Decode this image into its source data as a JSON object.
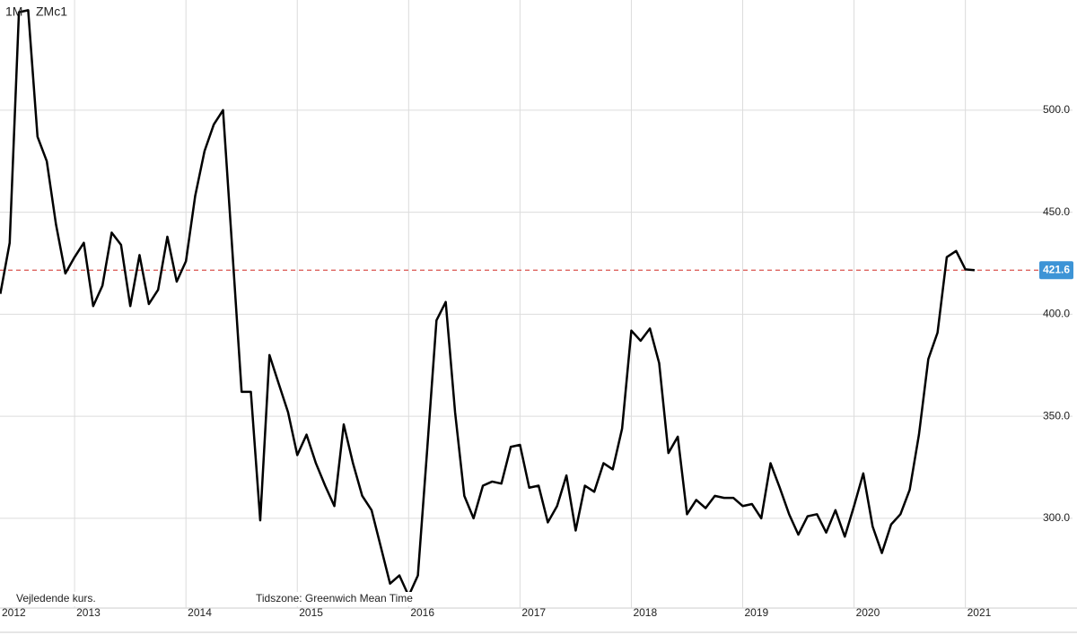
{
  "chart_data": {
    "type": "line",
    "symbol": "1M",
    "ticker": "ZMc1",
    "annotations": [
      "Vejledende kurs.",
      "Tidszone: Greenwich Mean Time"
    ],
    "x": [
      2012.333,
      2012.417,
      2012.5,
      2012.583,
      2012.667,
      2012.75,
      2012.833,
      2012.917,
      2013.0,
      2013.083,
      2013.167,
      2013.25,
      2013.333,
      2013.417,
      2013.5,
      2013.583,
      2013.667,
      2013.75,
      2013.833,
      2013.917,
      2014.0,
      2014.083,
      2014.167,
      2014.25,
      2014.333,
      2014.417,
      2014.5,
      2014.583,
      2014.667,
      2014.75,
      2014.833,
      2014.917,
      2015.0,
      2015.083,
      2015.167,
      2015.25,
      2015.333,
      2015.417,
      2015.5,
      2015.583,
      2015.667,
      2015.75,
      2015.833,
      2015.917,
      2016.0,
      2016.083,
      2016.167,
      2016.25,
      2016.333,
      2016.417,
      2016.5,
      2016.583,
      2016.667,
      2016.75,
      2016.833,
      2016.917,
      2017.0,
      2017.083,
      2017.167,
      2017.25,
      2017.333,
      2017.417,
      2017.5,
      2017.583,
      2017.667,
      2017.75,
      2017.833,
      2017.917,
      2018.0,
      2018.083,
      2018.167,
      2018.25,
      2018.333,
      2018.417,
      2018.5,
      2018.583,
      2018.667,
      2018.75,
      2018.833,
      2018.917,
      2019.0,
      2019.083,
      2019.167,
      2019.25,
      2019.333,
      2019.417,
      2019.5,
      2019.583,
      2019.667,
      2019.75,
      2019.833,
      2019.917,
      2020.0,
      2020.083,
      2020.167,
      2020.25,
      2020.333,
      2020.417,
      2020.5,
      2020.583,
      2020.667,
      2020.75,
      2020.833,
      2020.917,
      2021.0,
      2021.083
    ],
    "series": [
      {
        "color": "#000000",
        "values": [
          410,
          435,
          548,
          549,
          487,
          475,
          444,
          420,
          428,
          435,
          404,
          414,
          440,
          434,
          404,
          429,
          405,
          412,
          438,
          416,
          426,
          458,
          480,
          493,
          500,
          431,
          362,
          362,
          299,
          380,
          366,
          352,
          331,
          341,
          327,
          316,
          306,
          346,
          327,
          311,
          304,
          286,
          268,
          272,
          262,
          272,
          334,
          397,
          406,
          352,
          311,
          300,
          316,
          318,
          317,
          335,
          336,
          315,
          316,
          298,
          306,
          321,
          294,
          316,
          313,
          327,
          324,
          344,
          392,
          387,
          393,
          376,
          332,
          340,
          302,
          309,
          305,
          311,
          310,
          310,
          306,
          307,
          300,
          327,
          315,
          302,
          292,
          301,
          302,
          293,
          304,
          291,
          306,
          322,
          296,
          283,
          297,
          302,
          314,
          341,
          378,
          391,
          428,
          431,
          422,
          421.6
        ]
      }
    ],
    "reference_line": {
      "value": 421.6,
      "label": "421.6",
      "color": "#d9534f",
      "label_color": "#3d94d6"
    },
    "xlim": [
      2012.33,
      2021.68
    ],
    "xticks": [
      2012,
      2013,
      2014,
      2015,
      2016,
      2017,
      2018,
      2019,
      2020,
      2021
    ],
    "ylim": [
      256,
      554
    ],
    "yticks": [
      {
        "value": 300,
        "label": "300.0"
      },
      {
        "value": 350,
        "label": "350.0"
      },
      {
        "value": 400,
        "label": "400.0"
      },
      {
        "value": 450,
        "label": "450.0"
      },
      {
        "value": 500,
        "label": "500.0"
      }
    ],
    "grid": true
  }
}
